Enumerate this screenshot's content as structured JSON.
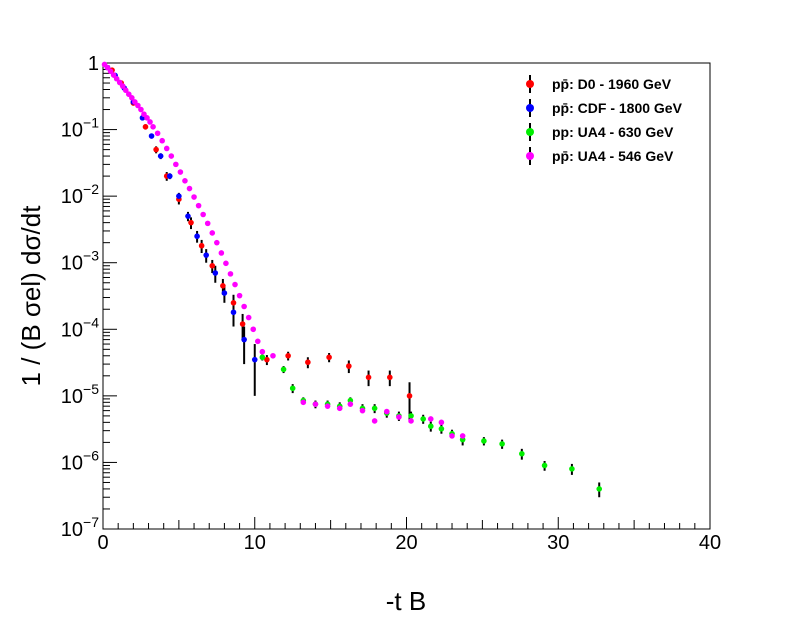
{
  "chart_data": {
    "type": "scatter",
    "title": "",
    "xlabel": "-t B",
    "ylabel": "1 / (B σel)  dσ/dt",
    "xlim": [
      0,
      40
    ],
    "ylim": [
      1e-07,
      1
    ],
    "yscale": "log",
    "x_ticks": [
      "0",
      "10",
      "20",
      "30",
      "40"
    ],
    "y_ticks": [
      {
        "base": "10",
        "exp": "−7"
      },
      {
        "base": "10",
        "exp": "−6"
      },
      {
        "base": "10",
        "exp": "−5"
      },
      {
        "base": "10",
        "exp": "−4"
      },
      {
        "base": "10",
        "exp": "−3"
      },
      {
        "base": "10",
        "exp": "−2"
      },
      {
        "base": "10",
        "exp": "−1"
      },
      {
        "base": "1",
        "exp": ""
      }
    ],
    "legend_position": "top-right",
    "series": [
      {
        "name": "pp̄: D0 - 1960 GeV",
        "color": "#ff0000",
        "points": [
          {
            "x": 0.6,
            "y": 0.78,
            "err": 0.04
          },
          {
            "x": 1.2,
            "y": 0.5,
            "err": 0.03
          },
          {
            "x": 2.0,
            "y": 0.25,
            "err": 0.02
          },
          {
            "x": 2.8,
            "y": 0.11,
            "err": 0.01
          },
          {
            "x": 3.5,
            "y": 0.05,
            "err": 0.006
          },
          {
            "x": 4.2,
            "y": 0.02,
            "err": 0.003
          },
          {
            "x": 5.0,
            "y": 0.009,
            "err": 0.0015
          },
          {
            "x": 5.8,
            "y": 0.004,
            "err": 0.0008
          },
          {
            "x": 6.5,
            "y": 0.0018,
            "err": 0.0004
          },
          {
            "x": 7.2,
            "y": 0.0009,
            "err": 0.0002
          },
          {
            "x": 7.9,
            "y": 0.00045,
            "err": 0.00012
          },
          {
            "x": 8.6,
            "y": 0.00025,
            "err": 8e-05
          },
          {
            "x": 9.2,
            "y": 0.00012,
            "err": 5e-05
          },
          {
            "x": 10.8,
            "y": 3.5e-05,
            "err": 6e-06
          },
          {
            "x": 12.2,
            "y": 4e-05,
            "err": 6e-06
          },
          {
            "x": 13.5,
            "y": 3.2e-05,
            "err": 6e-06
          },
          {
            "x": 14.9,
            "y": 3.8e-05,
            "err": 6e-06
          },
          {
            "x": 16.2,
            "y": 2.8e-05,
            "err": 6e-06
          },
          {
            "x": 17.5,
            "y": 1.9e-05,
            "err": 5e-06
          },
          {
            "x": 18.9,
            "y": 1.9e-05,
            "err": 5e-06
          },
          {
            "x": 20.2,
            "y": 1e-05,
            "err": 6e-06
          }
        ]
      },
      {
        "name": "pp̄: CDF - 1800 GeV",
        "color": "#0000ff",
        "points": [
          {
            "x": 0.3,
            "y": 0.85,
            "err": 0.03
          },
          {
            "x": 0.8,
            "y": 0.65,
            "err": 0.03
          },
          {
            "x": 1.4,
            "y": 0.42,
            "err": 0.02
          },
          {
            "x": 2.0,
            "y": 0.26,
            "err": 0.015
          },
          {
            "x": 2.6,
            "y": 0.15,
            "err": 0.01
          },
          {
            "x": 3.2,
            "y": 0.08,
            "err": 0.006
          },
          {
            "x": 3.8,
            "y": 0.04,
            "err": 0.004
          },
          {
            "x": 4.4,
            "y": 0.02,
            "err": 0.002
          },
          {
            "x": 5.0,
            "y": 0.01,
            "err": 0.0012
          },
          {
            "x": 5.6,
            "y": 0.005,
            "err": 0.0008
          },
          {
            "x": 6.2,
            "y": 0.0025,
            "err": 0.0005
          },
          {
            "x": 6.8,
            "y": 0.0013,
            "err": 0.0003
          },
          {
            "x": 7.4,
            "y": 0.0007,
            "err": 0.0002
          },
          {
            "x": 8.0,
            "y": 0.00035,
            "err": 0.0001
          },
          {
            "x": 8.6,
            "y": 0.00018,
            "err": 7e-05
          },
          {
            "x": 9.3,
            "y": 7e-05,
            "err": 4e-05
          },
          {
            "x": 10.0,
            "y": 3.5e-05,
            "err": 2.5e-05
          }
        ]
      },
      {
        "name": "pp: UA4 - 630 GeV",
        "color": "#00ee00",
        "points": [
          {
            "x": 10.5,
            "y": 3.8e-05,
            "err": 4e-06
          },
          {
            "x": 11.9,
            "y": 2.5e-05,
            "err": 3e-06
          },
          {
            "x": 12.5,
            "y": 1.3e-05,
            "err": 2e-06
          },
          {
            "x": 13.2,
            "y": 8.5e-06,
            "err": 1e-06
          },
          {
            "x": 14.0,
            "y": 7.5e-06,
            "err": 1e-06
          },
          {
            "x": 14.8,
            "y": 7.5e-06,
            "err": 1e-06
          },
          {
            "x": 15.6,
            "y": 7e-06,
            "err": 1e-06
          },
          {
            "x": 16.3,
            "y": 8.5e-06,
            "err": 1e-06
          },
          {
            "x": 17.1,
            "y": 6.5e-06,
            "err": 1e-06
          },
          {
            "x": 17.9,
            "y": 6.5e-06,
            "err": 1e-06
          },
          {
            "x": 18.7,
            "y": 5.5e-06,
            "err": 8e-07
          },
          {
            "x": 19.5,
            "y": 5e-06,
            "err": 8e-07
          },
          {
            "x": 20.3,
            "y": 5e-06,
            "err": 8e-07
          },
          {
            "x": 21.1,
            "y": 4.5e-06,
            "err": 7e-07
          },
          {
            "x": 21.6,
            "y": 3.5e-06,
            "err": 6e-07
          },
          {
            "x": 22.3,
            "y": 3.2e-06,
            "err": 5e-07
          },
          {
            "x": 23.0,
            "y": 2.7e-06,
            "err": 4e-07
          },
          {
            "x": 23.7,
            "y": 2.2e-06,
            "err": 4e-07
          },
          {
            "x": 25.1,
            "y": 2.1e-06,
            "err": 3e-07
          },
          {
            "x": 26.3,
            "y": 1.9e-06,
            "err": 3e-07
          },
          {
            "x": 27.6,
            "y": 1.35e-06,
            "err": 2.5e-07
          },
          {
            "x": 29.1,
            "y": 9e-07,
            "err": 1.5e-07
          },
          {
            "x": 30.9,
            "y": 8e-07,
            "err": 1.5e-07
          },
          {
            "x": 32.7,
            "y": 4e-07,
            "err": 1e-07
          }
        ]
      },
      {
        "name": "pp̄: UA4 - 546 GeV",
        "color": "#ff00ff",
        "points": [
          {
            "x": 0.1,
            "y": 0.95
          },
          {
            "x": 0.3,
            "y": 0.85
          },
          {
            "x": 0.5,
            "y": 0.75
          },
          {
            "x": 0.7,
            "y": 0.66
          },
          {
            "x": 0.9,
            "y": 0.58
          },
          {
            "x": 1.1,
            "y": 0.51
          },
          {
            "x": 1.3,
            "y": 0.45
          },
          {
            "x": 1.5,
            "y": 0.39
          },
          {
            "x": 1.7,
            "y": 0.34
          },
          {
            "x": 1.9,
            "y": 0.3
          },
          {
            "x": 2.1,
            "y": 0.26
          },
          {
            "x": 2.3,
            "y": 0.23
          },
          {
            "x": 2.5,
            "y": 0.2
          },
          {
            "x": 2.7,
            "y": 0.17
          },
          {
            "x": 2.9,
            "y": 0.15
          },
          {
            "x": 3.1,
            "y": 0.13
          },
          {
            "x": 3.3,
            "y": 0.11
          },
          {
            "x": 3.6,
            "y": 0.088
          },
          {
            "x": 3.9,
            "y": 0.068
          },
          {
            "x": 4.2,
            "y": 0.052
          },
          {
            "x": 4.5,
            "y": 0.04
          },
          {
            "x": 4.8,
            "y": 0.03
          },
          {
            "x": 5.1,
            "y": 0.023
          },
          {
            "x": 5.4,
            "y": 0.017
          },
          {
            "x": 5.7,
            "y": 0.013
          },
          {
            "x": 6.0,
            "y": 0.0097
          },
          {
            "x": 6.3,
            "y": 0.0072
          },
          {
            "x": 6.6,
            "y": 0.0053
          },
          {
            "x": 6.9,
            "y": 0.0039
          },
          {
            "x": 7.2,
            "y": 0.0028
          },
          {
            "x": 7.5,
            "y": 0.002
          },
          {
            "x": 7.8,
            "y": 0.0014
          },
          {
            "x": 8.1,
            "y": 0.00098
          },
          {
            "x": 8.4,
            "y": 0.00068
          },
          {
            "x": 8.7,
            "y": 0.00047
          },
          {
            "x": 9.0,
            "y": 0.00032
          },
          {
            "x": 9.3,
            "y": 0.00022
          },
          {
            "x": 9.6,
            "y": 0.00015
          },
          {
            "x": 9.9,
            "y": 0.0001
          },
          {
            "x": 10.2,
            "y": 6.6e-05
          },
          {
            "x": 10.5,
            "y": 4.6e-05
          },
          {
            "x": 11.2,
            "y": 4e-05
          },
          {
            "x": 13.2,
            "y": 8e-06
          },
          {
            "x": 14.0,
            "y": 7.5e-06
          },
          {
            "x": 14.8,
            "y": 7e-06
          },
          {
            "x": 15.6,
            "y": 6.5e-06
          },
          {
            "x": 16.3,
            "y": 7.5e-06
          },
          {
            "x": 17.1,
            "y": 6e-06
          },
          {
            "x": 17.9,
            "y": 4.2e-06
          },
          {
            "x": 18.7,
            "y": 5.8e-06
          },
          {
            "x": 19.5,
            "y": 4.8e-06
          },
          {
            "x": 20.3,
            "y": 4.2e-06
          },
          {
            "x": 21.6,
            "y": 4.5e-06
          },
          {
            "x": 22.3,
            "y": 4e-06
          },
          {
            "x": 23.0,
            "y": 2.5e-06
          },
          {
            "x": 23.7,
            "y": 2.5e-06
          }
        ]
      }
    ]
  }
}
